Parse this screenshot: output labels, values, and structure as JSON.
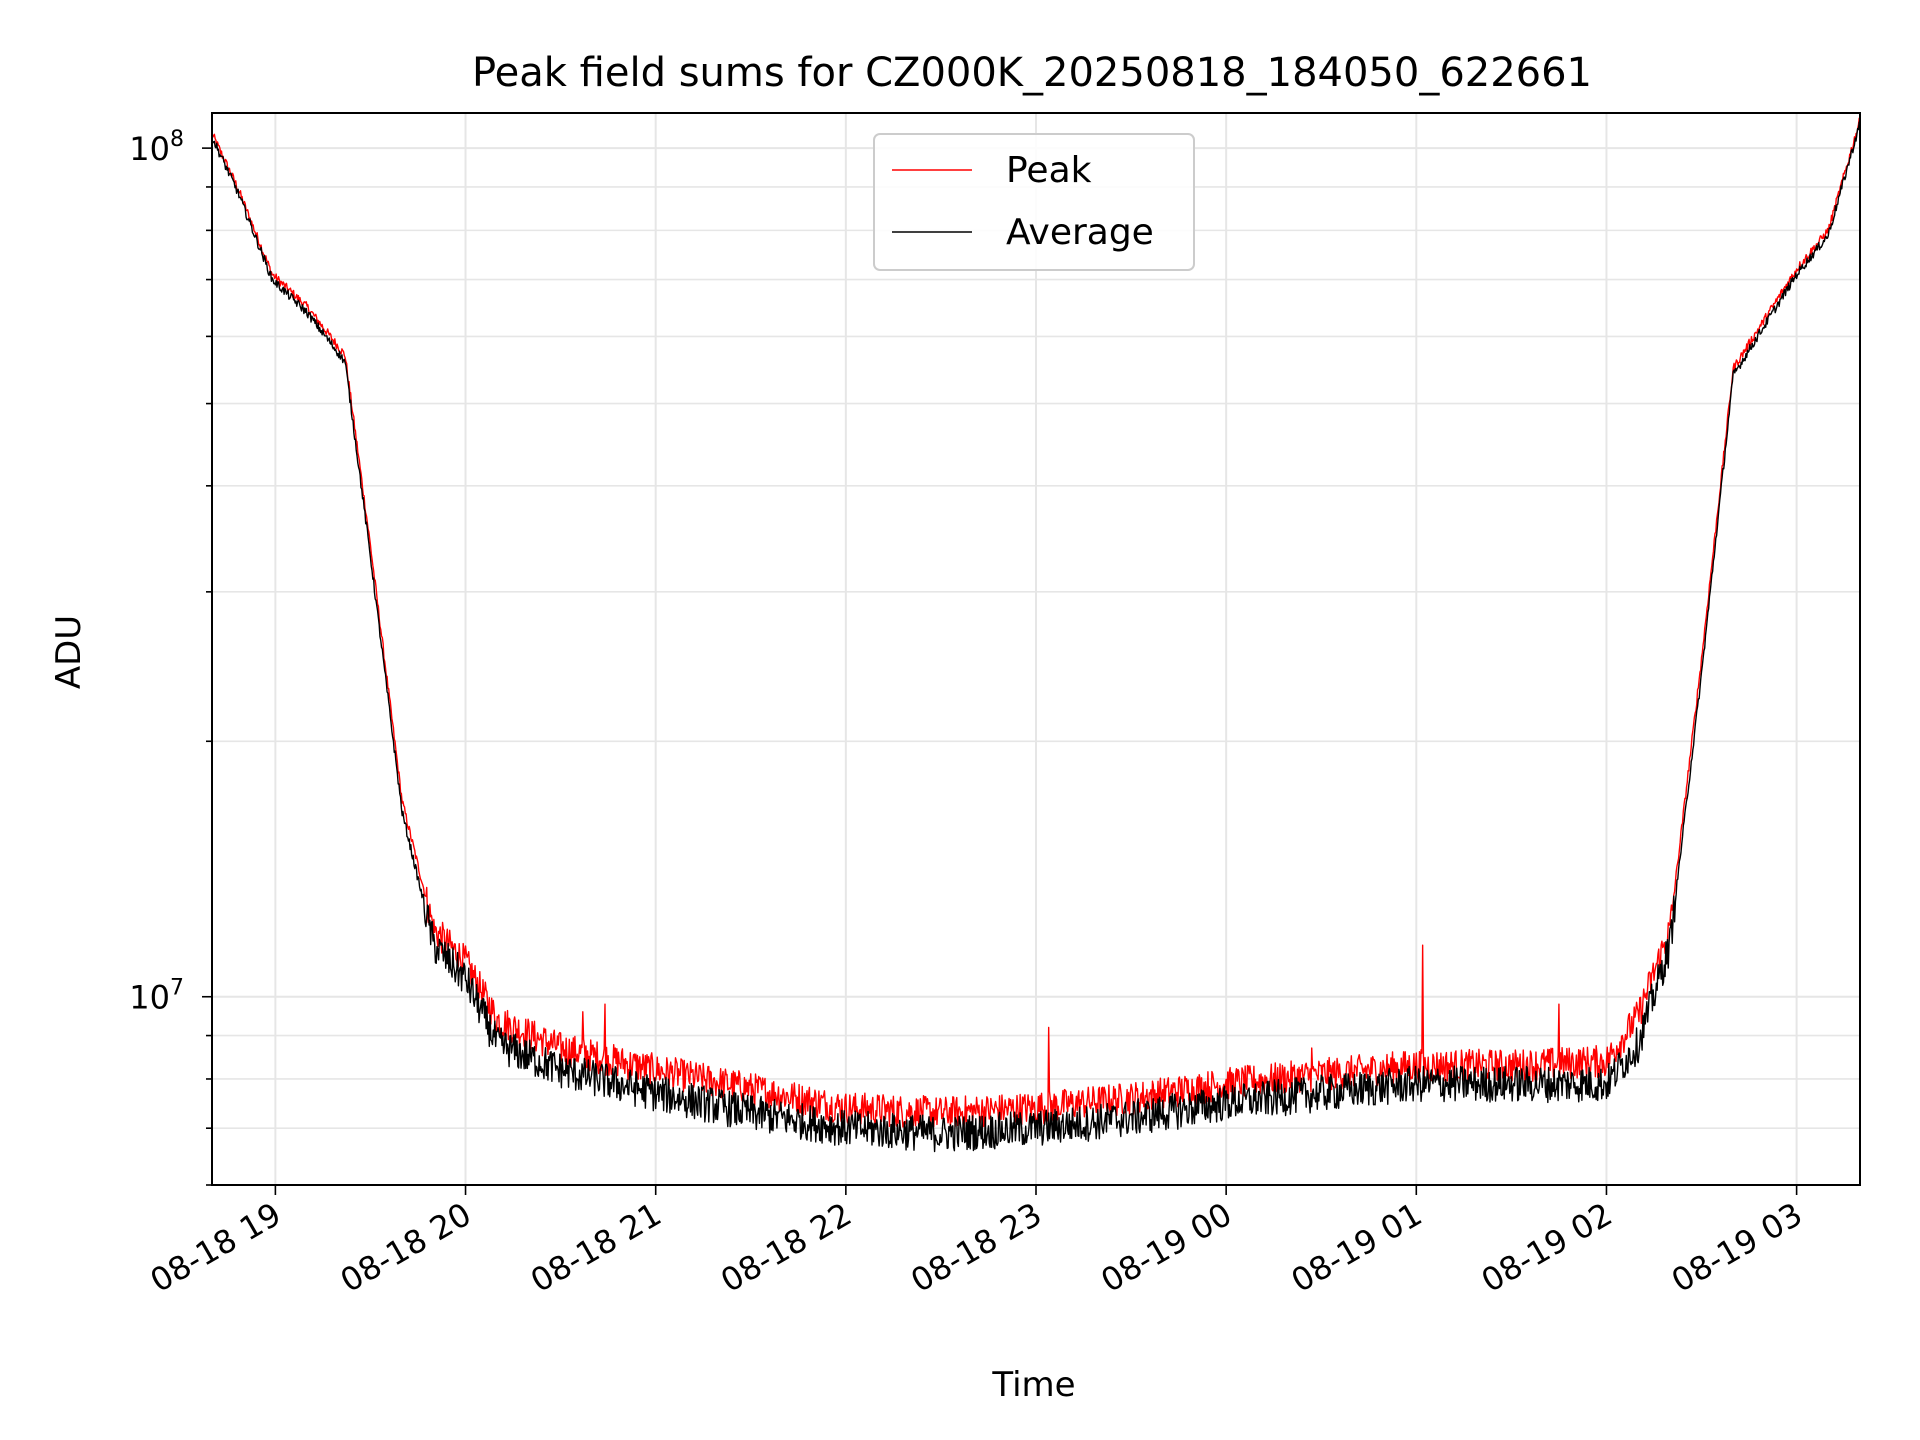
{
  "chart_data": {
    "type": "line",
    "title": "Peak field sums for CZ000K_20250818_184050_622661",
    "xlabel": "Time",
    "ylabel": "ADU",
    "yscale": "log",
    "xlim": [
      "2025-08-18 18:40",
      "2025-08-19 03:20"
    ],
    "ylim": [
      6000000,
      110000000
    ],
    "x_ticks": [
      {
        "t": "2025-08-18 19:00",
        "label": "08-18 19"
      },
      {
        "t": "2025-08-18 20:00",
        "label": "08-18 20"
      },
      {
        "t": "2025-08-18 21:00",
        "label": "08-18 21"
      },
      {
        "t": "2025-08-18 22:00",
        "label": "08-18 22"
      },
      {
        "t": "2025-08-18 23:00",
        "label": "08-18 23"
      },
      {
        "t": "2025-08-19 00:00",
        "label": "08-19 00"
      },
      {
        "t": "2025-08-19 01:00",
        "label": "08-19 01"
      },
      {
        "t": "2025-08-19 02:00",
        "label": "08-19 02"
      },
      {
        "t": "2025-08-19 03:00",
        "label": "08-19 03"
      }
    ],
    "y_ticks": [
      {
        "value": 10000000,
        "base": "10",
        "exp": "7"
      },
      {
        "value": 100000000,
        "base": "10",
        "exp": "8"
      }
    ],
    "grid": true,
    "legend_position": "upper center",
    "series": [
      {
        "name": "Peak",
        "color": "#ff0000",
        "points": [
          [
            "2025-08-18 18:40",
            104000000
          ],
          [
            "2025-08-18 18:48",
            90000000
          ],
          [
            "2025-08-18 18:59",
            71000000
          ],
          [
            "2025-08-18 19:10",
            65000000
          ],
          [
            "2025-08-18 19:22",
            57000000
          ],
          [
            "2025-08-18 19:30",
            34000000
          ],
          [
            "2025-08-18 19:40",
            17000000
          ],
          [
            "2025-08-18 19:50",
            12000000
          ],
          [
            "2025-08-18 20:00",
            11000000
          ],
          [
            "2025-08-18 20:10",
            9400000
          ],
          [
            "2025-08-18 20:30",
            8700000
          ],
          [
            "2025-08-18 21:00",
            8200000
          ],
          [
            "2025-08-18 21:30",
            7800000
          ],
          [
            "2025-08-18 22:00",
            7400000
          ],
          [
            "2025-08-18 22:30",
            7300000
          ],
          [
            "2025-08-18 23:00",
            7400000
          ],
          [
            "2025-08-18 23:30",
            7600000
          ],
          [
            "2025-08-19 00:00",
            7900000
          ],
          [
            "2025-08-19 00:30",
            8100000
          ],
          [
            "2025-08-19 01:00",
            8300000
          ],
          [
            "2025-08-19 01:30",
            8300000
          ],
          [
            "2025-08-19 02:00",
            8400000
          ],
          [
            "2025-08-19 02:10",
            9500000
          ],
          [
            "2025-08-19 02:20",
            12000000
          ],
          [
            "2025-08-19 02:30",
            25000000
          ],
          [
            "2025-08-19 02:40",
            55000000
          ],
          [
            "2025-08-19 03:00",
            72000000
          ],
          [
            "2025-08-19 03:10",
            80000000
          ],
          [
            "2025-08-19 03:20",
            108000000
          ]
        ],
        "spikes": [
          [
            "2025-08-18 20:37",
            9600000
          ],
          [
            "2025-08-18 20:44",
            9800000
          ],
          [
            "2025-08-18 23:04",
            9200000
          ],
          [
            "2025-08-19 00:27",
            8700000
          ],
          [
            "2025-08-19 01:02",
            11500000
          ],
          [
            "2025-08-19 01:45",
            9800000
          ]
        ]
      },
      {
        "name": "Average",
        "color": "#000000",
        "points": [
          [
            "2025-08-18 18:40",
            103000000
          ],
          [
            "2025-08-18 18:48",
            89000000
          ],
          [
            "2025-08-18 18:59",
            70000000
          ],
          [
            "2025-08-18 19:10",
            64000000
          ],
          [
            "2025-08-18 19:22",
            56000000
          ],
          [
            "2025-08-18 19:30",
            33000000
          ],
          [
            "2025-08-18 19:40",
            16500000
          ],
          [
            "2025-08-18 19:50",
            11500000
          ],
          [
            "2025-08-18 20:00",
            10500000
          ],
          [
            "2025-08-18 20:10",
            8800000
          ],
          [
            "2025-08-18 20:30",
            8200000
          ],
          [
            "2025-08-18 21:00",
            7700000
          ],
          [
            "2025-08-18 21:30",
            7300000
          ],
          [
            "2025-08-18 22:00",
            7000000
          ],
          [
            "2025-08-18 22:30",
            6900000
          ],
          [
            "2025-08-18 23:00",
            7000000
          ],
          [
            "2025-08-18 23:30",
            7200000
          ],
          [
            "2025-08-19 00:00",
            7500000
          ],
          [
            "2025-08-19 00:30",
            7700000
          ],
          [
            "2025-08-19 01:00",
            7900000
          ],
          [
            "2025-08-19 01:30",
            7900000
          ],
          [
            "2025-08-19 02:00",
            7900000
          ],
          [
            "2025-08-19 02:10",
            8800000
          ],
          [
            "2025-08-19 02:20",
            11500000
          ],
          [
            "2025-08-19 02:30",
            24000000
          ],
          [
            "2025-08-19 02:40",
            54000000
          ],
          [
            "2025-08-19 03:00",
            71000000
          ],
          [
            "2025-08-19 03:10",
            79000000
          ],
          [
            "2025-08-19 03:20",
            107000000
          ]
        ]
      }
    ]
  }
}
